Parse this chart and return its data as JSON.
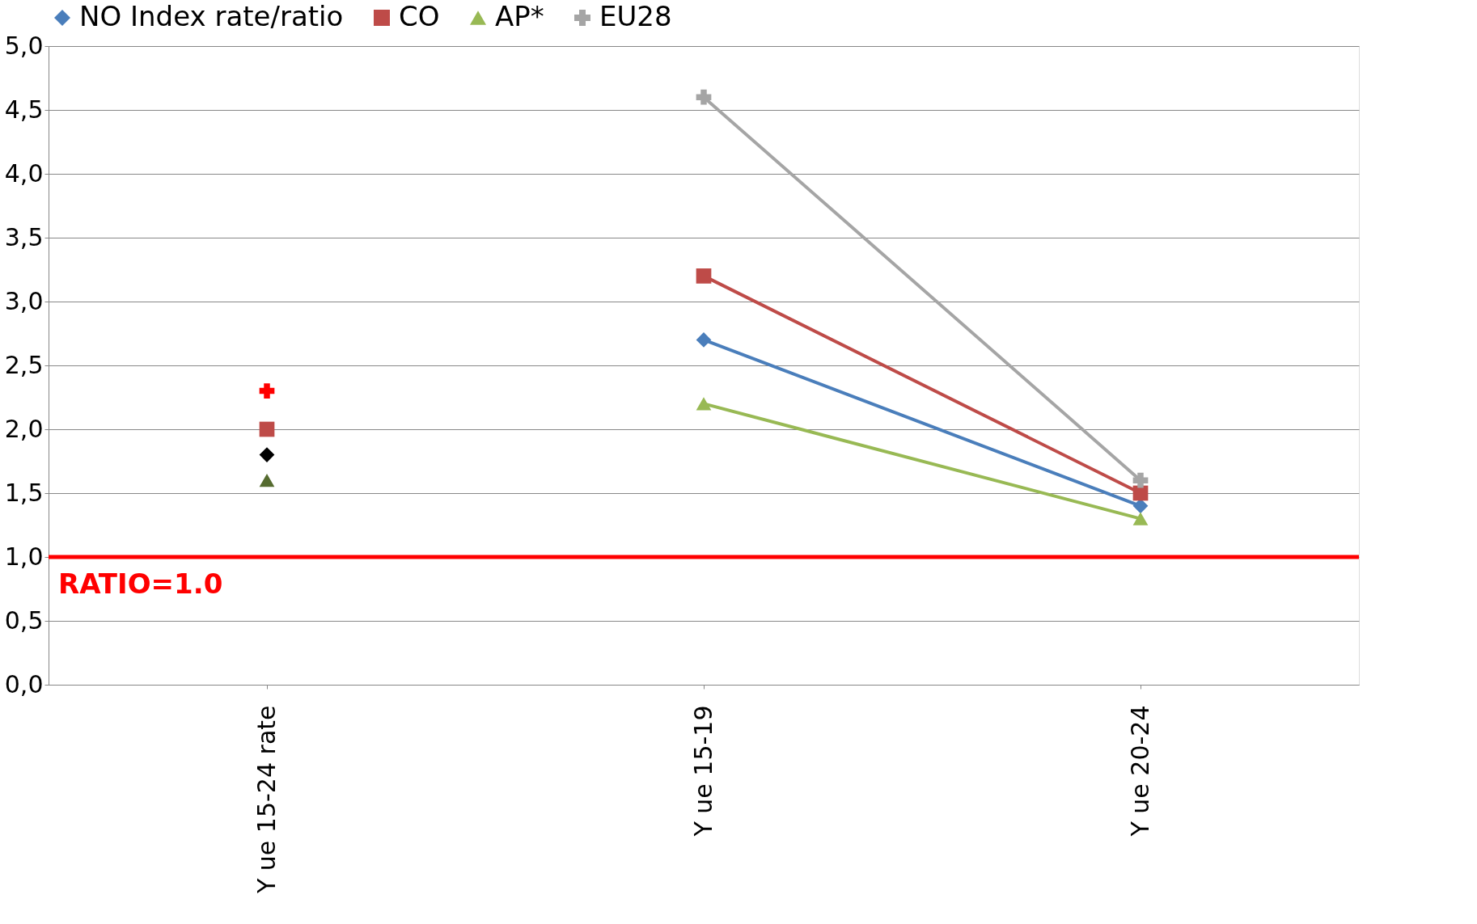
{
  "chart_data": {
    "type": "line",
    "categories": [
      "Y ue 15-24 rate",
      "Y ue 15-19",
      "Y ue 20-24"
    ],
    "series": [
      {
        "name": "NO Index rate/ratio",
        "color": "#4a7ebb",
        "marker": "diamond",
        "values": [
          null,
          2.7,
          1.4
        ]
      },
      {
        "name": "CO",
        "color": "#be4b48",
        "marker": "square",
        "values": [
          null,
          3.2,
          1.5
        ]
      },
      {
        "name": "AP*",
        "color": "#98b954",
        "marker": "triangle",
        "values": [
          null,
          2.2,
          1.3
        ]
      },
      {
        "name": "EU28",
        "color": "#a5a5a5",
        "marker": "cross",
        "values": [
          null,
          4.6,
          1.6
        ]
      },
      {
        "type": "scatter",
        "color": "#000000",
        "marker": "diamond",
        "values": [
          1.8,
          null,
          null
        ]
      },
      {
        "type": "scatter",
        "color": "#be4b48",
        "marker": "square",
        "values": [
          2.0,
          null,
          null
        ]
      },
      {
        "type": "scatter",
        "color": "#556b2f",
        "marker": "triangle",
        "values": [
          1.6,
          null,
          null
        ]
      },
      {
        "type": "scatter",
        "color": "#ff0000",
        "marker": "cross",
        "values": [
          2.3,
          null,
          null
        ]
      }
    ],
    "ylim": [
      0,
      5
    ],
    "yticks": [
      {
        "value": 0,
        "label": "0,0"
      },
      {
        "value": 0.5,
        "label": "0,5"
      },
      {
        "value": 1,
        "label": "1,0"
      },
      {
        "value": 1.5,
        "label": "1,5"
      },
      {
        "value": 2,
        "label": "2,0"
      },
      {
        "value": 2.5,
        "label": "2,5"
      },
      {
        "value": 3,
        "label": "3,0"
      },
      {
        "value": 3.5,
        "label": "3,5"
      },
      {
        "value": 4,
        "label": "4,0"
      },
      {
        "value": 4.5,
        "label": "4,5"
      },
      {
        "value": 5,
        "label": "5,0"
      }
    ],
    "ref_lines": [
      {
        "axis": "y",
        "value": 1.0,
        "label": "RATIO=1.0",
        "color": "#ff0000"
      }
    ],
    "grid": "y",
    "legend": "top"
  }
}
